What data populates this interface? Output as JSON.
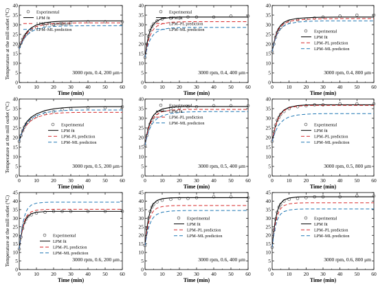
{
  "legend_labels": {
    "experimental": "Experimental",
    "lpm_fit": "LPM fit",
    "lpm_pl": "LPM–PL prediction",
    "lpm_ml": "LPM–ML prediction"
  },
  "colors": {
    "experimental": "#555555",
    "lpm_fit": "#000000",
    "lpm_pl": "#d62728",
    "lpm_ml": "#1f77b4"
  },
  "chart_data": [
    {
      "type": "line",
      "condition": "3000 rpm, 0.4, 200 μm",
      "xlabel": "Time (min)",
      "ylabel": "Temperature at the mill outlet (°C)",
      "xlim": [
        0,
        60
      ],
      "ylim": [
        0,
        40
      ],
      "xticks": [
        0,
        10,
        20,
        30,
        40,
        50,
        60
      ],
      "yticks": [
        0,
        5,
        10,
        15,
        20,
        25,
        30,
        35,
        40
      ],
      "legend_position": "top-left",
      "x": [
        0,
        1,
        2,
        3,
        4,
        5,
        7,
        10,
        15,
        20,
        25,
        30,
        40,
        50,
        60
      ],
      "series": [
        {
          "key": "experimental",
          "values": [
            18.5,
            20.5,
            22.5,
            24,
            25,
            26,
            27.5,
            28.5,
            29.5,
            30,
            30.5,
            31,
            31.5,
            31.5,
            31.5
          ]
        },
        {
          "key": "lpm_fit",
          "values": [
            17.5,
            20.2,
            22.4,
            24.2,
            25.6,
            26.8,
            28.4,
            29.9,
            31.1,
            31.6,
            31.8,
            31.9,
            32,
            32,
            32
          ]
        },
        {
          "key": "lpm_pl",
          "values": [
            17.5,
            20,
            22,
            23.7,
            25,
            26.1,
            27.7,
            29.1,
            30.2,
            30.6,
            30.8,
            30.9,
            31,
            31,
            31
          ]
        },
        {
          "key": "lpm_ml",
          "values": [
            17.5,
            19.6,
            21.4,
            22.9,
            24.1,
            25,
            26.4,
            27.7,
            28.7,
            29.1,
            29.3,
            29.4,
            29.5,
            29.5,
            29.5
          ]
        }
      ]
    },
    {
      "type": "line",
      "condition": "3000 rpm, 0.4, 400 μm",
      "xlabel": "Time (min)",
      "ylabel": "",
      "xlim": [
        0,
        60
      ],
      "ylim": [
        0,
        40
      ],
      "xticks": [
        0,
        10,
        20,
        30,
        40,
        50,
        60
      ],
      "yticks": [
        0,
        5,
        10,
        15,
        20,
        25,
        30,
        35,
        40
      ],
      "legend_position": "top-center",
      "x": [
        0,
        1,
        2,
        3,
        4,
        5,
        7,
        10,
        15,
        20,
        25,
        30,
        40,
        50,
        60
      ],
      "series": [
        {
          "key": "experimental",
          "values": [
            13,
            20,
            24,
            27,
            29,
            30.5,
            32,
            33,
            33.5,
            33.5,
            34,
            34,
            34,
            34.5,
            34.5
          ]
        },
        {
          "key": "lpm_fit",
          "values": [
            13,
            19.5,
            24,
            27,
            29,
            30.4,
            32,
            33.2,
            33.8,
            34,
            34,
            34,
            34,
            34,
            34
          ]
        },
        {
          "key": "lpm_pl",
          "values": [
            13,
            18.2,
            21.9,
            24.5,
            26.4,
            27.7,
            29.3,
            30.5,
            31.3,
            31.5,
            31.6,
            31.6,
            31.6,
            31.6,
            31.6
          ]
        },
        {
          "key": "lpm_ml",
          "values": [
            13,
            17.1,
            20.1,
            22.2,
            23.8,
            24.9,
            26.4,
            27.6,
            28.3,
            28.5,
            28.6,
            28.6,
            28.6,
            28.6,
            28.6
          ]
        }
      ]
    },
    {
      "type": "line",
      "condition": "3000 rpm, 0.4, 800 μm",
      "xlabel": "Time (min)",
      "ylabel": "",
      "xlim": [
        0,
        60
      ],
      "ylim": [
        0,
        40
      ],
      "xticks": [
        0,
        10,
        20,
        30,
        40,
        50,
        60
      ],
      "yticks": [
        0,
        5,
        10,
        15,
        20,
        25,
        30,
        35,
        40
      ],
      "legend_position": "center-right",
      "x": [
        0,
        1,
        2,
        3,
        4,
        5,
        7,
        10,
        15,
        20,
        25,
        30,
        40,
        50,
        60
      ],
      "series": [
        {
          "key": "experimental",
          "values": [
            16,
            20,
            23.5,
            26,
            27.5,
            28.5,
            30,
            31.5,
            32.5,
            33,
            33.5,
            34,
            34.5,
            35,
            35
          ]
        },
        {
          "key": "lpm_fit",
          "values": [
            16,
            20.5,
            24,
            26.6,
            28.4,
            29.7,
            31.3,
            32.5,
            33.3,
            33.6,
            33.8,
            33.9,
            34,
            34,
            34
          ]
        },
        {
          "key": "lpm_pl",
          "values": [
            16,
            20.3,
            23.6,
            26,
            27.8,
            29,
            30.6,
            31.8,
            32.5,
            32.8,
            33,
            33.1,
            33.2,
            33.2,
            33.2
          ]
        },
        {
          "key": "lpm_ml",
          "values": [
            16,
            19.9,
            22.9,
            25.2,
            26.8,
            28,
            29.5,
            30.6,
            31.4,
            31.7,
            31.9,
            32,
            32,
            32,
            32
          ]
        }
      ]
    },
    {
      "type": "line",
      "condition": "3000 rpm, 0.5, 200 μm",
      "xlabel": "Time (min)",
      "ylabel": "Temperature at the mill outlet (°C)",
      "xlim": [
        0,
        60
      ],
      "ylim": [
        0,
        40
      ],
      "xticks": [
        0,
        10,
        20,
        30,
        40,
        50,
        60
      ],
      "yticks": [
        0,
        5,
        10,
        15,
        20,
        25,
        30,
        35,
        40
      ],
      "legend_position": "center-right",
      "x": [
        0,
        1,
        2,
        3,
        4,
        5,
        7,
        10,
        15,
        20,
        25,
        30,
        40,
        50,
        60
      ],
      "series": [
        {
          "key": "experimental",
          "values": [
            18,
            21,
            23.5,
            25.5,
            27,
            28,
            29.5,
            31,
            32.5,
            33.5,
            34.5,
            35,
            35.5,
            35.5,
            36
          ]
        },
        {
          "key": "lpm_fit",
          "values": [
            18,
            21.2,
            23.8,
            25.9,
            27.5,
            28.8,
            30.6,
            32.3,
            34,
            34.9,
            35.4,
            35.7,
            35.9,
            36,
            36
          ]
        },
        {
          "key": "lpm_pl",
          "values": [
            18,
            20.8,
            23,
            24.8,
            26.2,
            27.3,
            28.9,
            30.4,
            31.8,
            32.5,
            32.8,
            33,
            33.1,
            33.1,
            33.1
          ]
        },
        {
          "key": "lpm_ml",
          "values": [
            18,
            21,
            23.4,
            25.4,
            26.9,
            28.1,
            29.8,
            31.4,
            32.9,
            33.6,
            34,
            34.2,
            34.3,
            34.3,
            34.3
          ]
        }
      ]
    },
    {
      "type": "line",
      "condition": "3000 rpm, 0.5, 400 μm",
      "xlabel": "Time (min)",
      "ylabel": "",
      "xlim": [
        0,
        60
      ],
      "ylim": [
        0,
        40
      ],
      "xticks": [
        0,
        10,
        20,
        30,
        40,
        50,
        60
      ],
      "yticks": [
        0,
        5,
        10,
        15,
        20,
        25,
        30,
        35,
        40
      ],
      "legend_position": "top-center",
      "x": [
        0,
        1,
        2,
        3,
        4,
        5,
        7,
        10,
        15,
        20,
        25,
        30,
        40,
        50,
        60
      ],
      "series": [
        {
          "key": "experimental",
          "values": [
            16,
            21,
            24.5,
            27,
            29,
            30.5,
            32.5,
            34,
            35,
            35.5,
            36,
            36,
            36.5,
            36.5,
            36.5
          ]
        },
        {
          "key": "lpm_fit",
          "values": [
            16,
            21.3,
            25.2,
            28,
            30.1,
            31.6,
            33.4,
            34.8,
            35.7,
            36,
            36.1,
            36.1,
            36.1,
            36.1,
            36.1
          ]
        },
        {
          "key": "lpm_pl",
          "values": [
            16,
            20.9,
            24.5,
            27.1,
            29,
            30.4,
            32.1,
            33.4,
            34.2,
            34.5,
            34.6,
            34.6,
            34.6,
            34.6,
            34.6
          ]
        },
        {
          "key": "lpm_ml",
          "values": [
            16,
            19.9,
            22.9,
            25.1,
            26.8,
            28.1,
            29.8,
            31.3,
            32.5,
            33,
            33.3,
            33.4,
            33.5,
            33.5,
            33.5
          ]
        }
      ]
    },
    {
      "type": "line",
      "condition": "3000 rpm, 0.5, 800 μm",
      "xlabel": "Time (min)",
      "ylabel": "",
      "xlim": [
        0,
        60
      ],
      "ylim": [
        0,
        40
      ],
      "xticks": [
        0,
        10,
        20,
        30,
        40,
        50,
        60
      ],
      "yticks": [
        0,
        5,
        10,
        15,
        20,
        25,
        30,
        35,
        40
      ],
      "legend_position": "center-right",
      "x": [
        0,
        1,
        2,
        3,
        4,
        5,
        7,
        10,
        15,
        20,
        25,
        30,
        40,
        50,
        60
      ],
      "series": [
        {
          "key": "experimental",
          "values": [
            18,
            23,
            26.5,
            29,
            30.5,
            32,
            33.5,
            35,
            36,
            36.5,
            37,
            37,
            37.5,
            37.5,
            37.5
          ]
        },
        {
          "key": "lpm_fit",
          "values": [
            18,
            22.6,
            26.2,
            28.9,
            30.9,
            32.4,
            34.3,
            35.7,
            36.6,
            36.9,
            37,
            37,
            37,
            37,
            37
          ]
        },
        {
          "key": "lpm_pl",
          "values": [
            18,
            22.5,
            26,
            28.6,
            30.6,
            32.1,
            34,
            35.4,
            36.3,
            36.6,
            36.7,
            36.7,
            36.7,
            36.7,
            36.7
          ]
        },
        {
          "key": "lpm_ml",
          "values": [
            18,
            20.9,
            23.3,
            25.1,
            26.6,
            27.7,
            29.3,
            30.7,
            31.7,
            32.1,
            32.3,
            32.4,
            32.4,
            32.4,
            32.4
          ]
        }
      ]
    },
    {
      "type": "line",
      "condition": "3000 rpm, 0.6, 200 μm",
      "xlabel": "Time (min)",
      "ylabel": "Temperature at the mill outlet (°C)",
      "xlim": [
        0,
        60
      ],
      "ylim": [
        0,
        45
      ],
      "xticks": [
        0,
        10,
        20,
        30,
        40,
        50,
        60
      ],
      "yticks": [
        0,
        5,
        10,
        15,
        20,
        25,
        30,
        35,
        40,
        45
      ],
      "legend_position": "bottom-right",
      "x": [
        0,
        1,
        2,
        3,
        4,
        5,
        7,
        10,
        15,
        20,
        25,
        30,
        40,
        50,
        60
      ],
      "series": [
        {
          "key": "experimental",
          "values": [
            12,
            19,
            24,
            27.5,
            29.5,
            31,
            32,
            33,
            33.5,
            34,
            34,
            34,
            34,
            34,
            34
          ]
        },
        {
          "key": "lpm_fit",
          "values": [
            12,
            19.1,
            24,
            27.3,
            29.5,
            31,
            32.6,
            33.5,
            33.9,
            34,
            34,
            34,
            34,
            34,
            34
          ]
        },
        {
          "key": "lpm_pl",
          "values": [
            12,
            19.4,
            24.5,
            28,
            30.4,
            32,
            33.7,
            34.7,
            35.1,
            35.2,
            35.2,
            35.2,
            35.2,
            35.2,
            35.2
          ]
        },
        {
          "key": "lpm_ml",
          "values": [
            12,
            20.8,
            26.8,
            30.9,
            33.8,
            35.7,
            37.7,
            38.8,
            39.3,
            39.4,
            39.4,
            39.4,
            39.4,
            39.4,
            39.4
          ]
        }
      ]
    },
    {
      "type": "line",
      "condition": "3000 rpm, 0.6, 400 μm",
      "xlabel": "Time (min)",
      "ylabel": "",
      "xlim": [
        0,
        60
      ],
      "ylim": [
        0,
        45
      ],
      "xticks": [
        0,
        10,
        20,
        30,
        40,
        50,
        60
      ],
      "yticks": [
        0,
        5,
        10,
        15,
        20,
        25,
        30,
        35,
        40,
        45
      ],
      "legend_position": "center-right",
      "x": [
        0,
        1,
        2,
        3,
        4,
        5,
        7,
        10,
        15,
        20,
        25,
        30,
        40,
        50,
        60
      ],
      "series": [
        {
          "key": "experimental",
          "values": [
            14,
            24,
            30,
            34,
            36.5,
            38,
            39.5,
            40.5,
            41,
            41.5,
            41.5,
            42,
            42.5,
            42.5,
            42
          ]
        },
        {
          "key": "lpm_fit",
          "values": [
            14,
            23.5,
            29.8,
            34,
            36.8,
            38.6,
            40.4,
            41.4,
            41.9,
            42,
            42,
            42,
            42,
            42,
            42
          ]
        },
        {
          "key": "lpm_pl",
          "values": [
            14,
            21.8,
            27,
            30.4,
            32.8,
            34.3,
            35.9,
            36.8,
            37.3,
            37.4,
            37.4,
            37.4,
            37.4,
            37.4,
            37.4
          ]
        },
        {
          "key": "lpm_ml",
          "values": [
            14,
            19.9,
            24.1,
            27,
            29.1,
            30.6,
            32.3,
            33.5,
            34.2,
            34.4,
            34.5,
            34.5,
            34.5,
            34.5,
            34.5
          ]
        }
      ]
    },
    {
      "type": "line",
      "condition": "3000 rpm, 0.6, 800 μm",
      "xlabel": "Time (min)",
      "ylabel": "",
      "xlim": [
        0,
        60
      ],
      "ylim": [
        0,
        45
      ],
      "xticks": [
        0,
        10,
        20,
        30,
        40,
        50,
        60
      ],
      "yticks": [
        0,
        5,
        10,
        15,
        20,
        25,
        30,
        35,
        40,
        45
      ],
      "legend_position": "center-right",
      "x": [
        0,
        1,
        2,
        3,
        4,
        5,
        7,
        10,
        15,
        20,
        25,
        30,
        40,
        50,
        60
      ],
      "series": [
        {
          "key": "experimental",
          "values": [
            13,
            23,
            29.5,
            33.5,
            36.5,
            38,
            40,
            41,
            41.5,
            42,
            42.5,
            42.5,
            42.5,
            43,
            43
          ]
        },
        {
          "key": "lpm_fit",
          "values": [
            13,
            22.9,
            29.5,
            33.9,
            36.8,
            38.7,
            40.7,
            41.8,
            42.4,
            42.5,
            42.5,
            42.5,
            42.5,
            42.5,
            42.5
          ]
        },
        {
          "key": "lpm_pl",
          "values": [
            13,
            21.7,
            27.5,
            31.4,
            33.9,
            35.6,
            37.4,
            38.4,
            38.9,
            39,
            39,
            39,
            39,
            39,
            39
          ]
        },
        {
          "key": "lpm_ml",
          "values": [
            13,
            20.5,
            25.5,
            28.8,
            31,
            32.4,
            33.9,
            34.8,
            35.3,
            35.4,
            35.4,
            35.4,
            35.4,
            35.4,
            35.4
          ]
        }
      ]
    }
  ]
}
